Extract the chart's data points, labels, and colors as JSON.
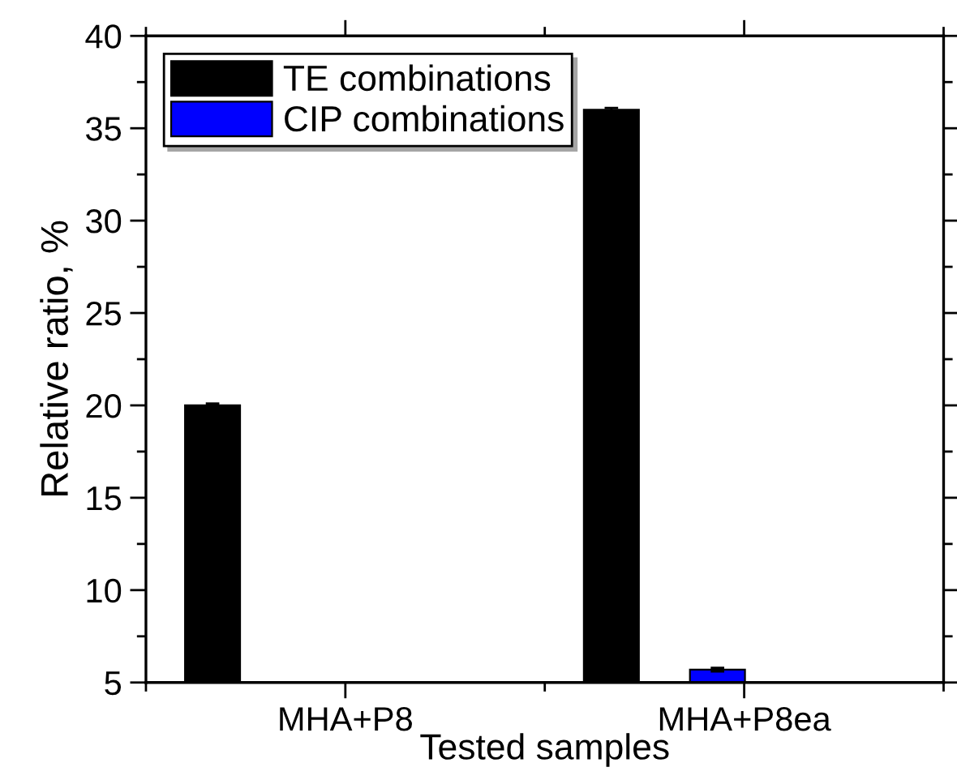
{
  "chart_data": {
    "type": "bar",
    "xlabel": "Tested samples",
    "ylabel": "Relative ratio, %",
    "categories": [
      "MHA+P8",
      "MHA+P8ea"
    ],
    "series": [
      {
        "name": "TE combinations",
        "color": "#000000",
        "values": [
          20,
          36
        ],
        "errors": [
          0.1,
          0.1
        ]
      },
      {
        "name": "CIP combinations",
        "color": "#0000ff",
        "values": [
          null,
          5.7
        ],
        "errors": [
          null,
          0.1
        ]
      }
    ],
    "ylim": [
      5,
      40
    ],
    "yticks": [
      5,
      10,
      15,
      20,
      25,
      30,
      35,
      40
    ],
    "grid": false,
    "legend": "top left"
  }
}
